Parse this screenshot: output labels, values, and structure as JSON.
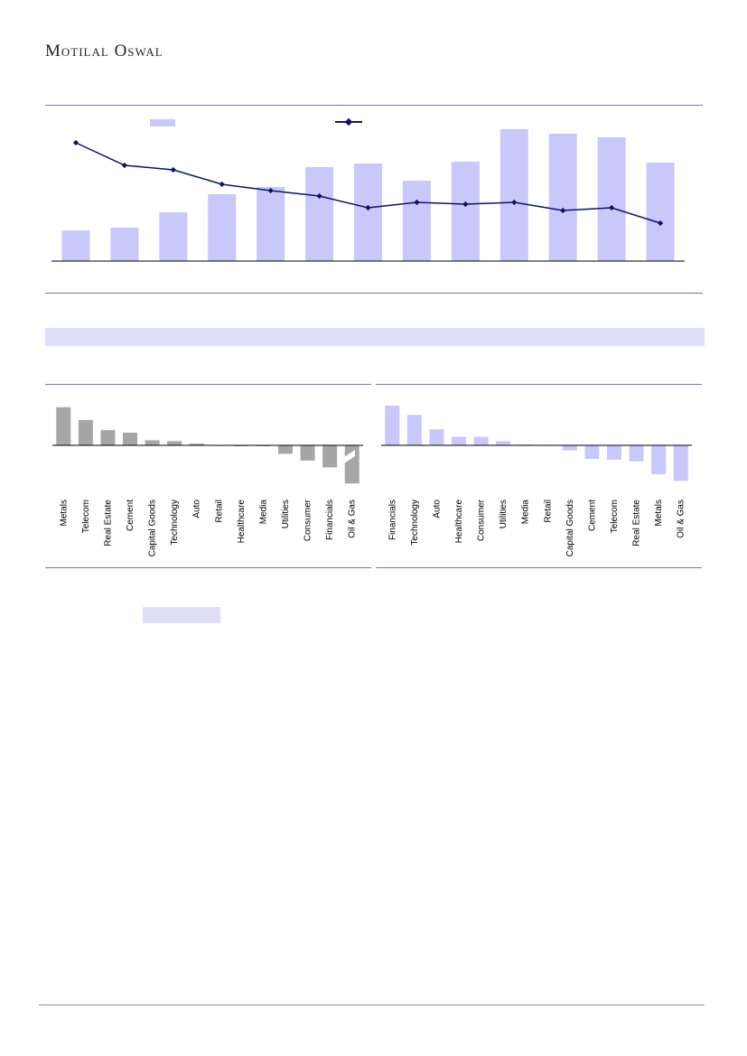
{
  "header": {
    "brand": "Motilal Oswal"
  },
  "colors": {
    "accent_bar": "#c8c8fa",
    "accent_line": "#0d1463",
    "gray_bar": "#a6a6a6",
    "band": "#dedef8",
    "rule": "#7a77a8"
  },
  "chart_data": [
    {
      "type": "bar",
      "series": [
        {
          "values": [
            34,
            37,
            54,
            74,
            82,
            104,
            108,
            89,
            110,
            146,
            141,
            137,
            109
          ]
        },
        {
          "type": "line",
          "values": [
            131,
            106,
            101,
            85,
            78,
            72,
            59,
            65,
            63,
            65,
            56,
            59,
            42
          ]
        }
      ],
      "ylim": [
        0,
        150
      ]
    },
    {
      "type": "bar",
      "categories": [
        "Metals",
        "Telecom",
        "Real Estate",
        "Cement",
        "Capital Goods",
        "Technology",
        "Auto",
        "Retail",
        "Healthcare",
        "Media",
        "Utilities",
        "Consumer",
        "Financials",
        "Oil & Gas"
      ],
      "values": [
        45,
        30,
        18,
        15,
        6,
        5,
        2,
        0,
        -1,
        -1,
        -10,
        -18,
        -26,
        -45
      ],
      "ylim": [
        -48,
        48
      ],
      "bar_color": "#a6a6a6"
    },
    {
      "type": "bar",
      "categories": [
        "Financials",
        "Technology",
        "Auto",
        "Healthcare",
        "Consumer",
        "Utilities",
        "Media",
        "Retail",
        "Capital Goods",
        "Cement",
        "Telecom",
        "Real Estate",
        "Metals",
        "Oil & Gas"
      ],
      "values": [
        47,
        36,
        19,
        10,
        10,
        5,
        1,
        0,
        -6,
        -16,
        -17,
        -19,
        -34,
        -42
      ],
      "ylim": [
        -48,
        48
      ],
      "bar_color": "#c8c8fa"
    }
  ]
}
